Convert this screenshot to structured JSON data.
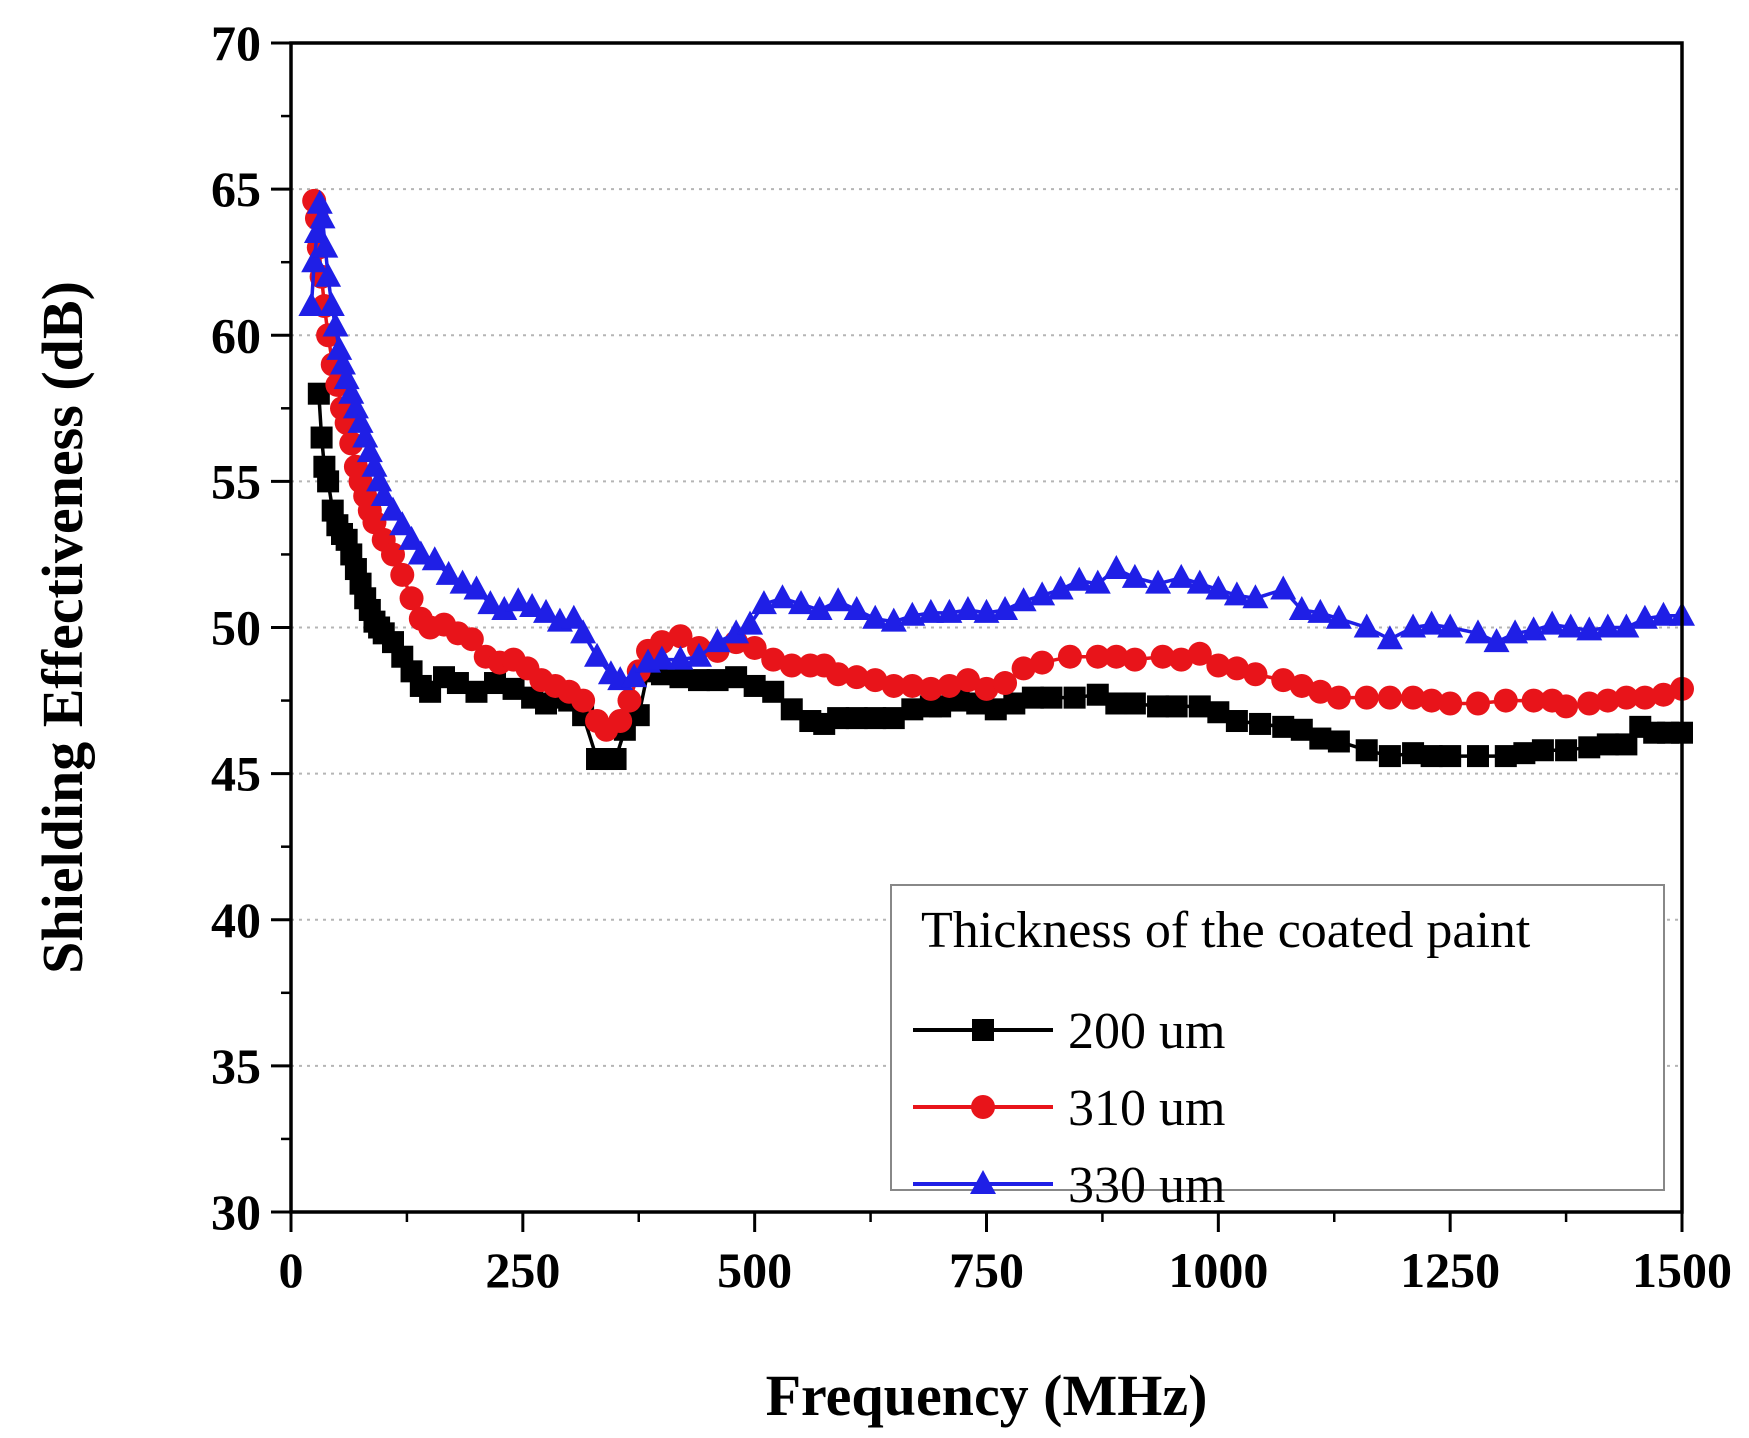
{
  "chart_data": {
    "type": "line",
    "title": "",
    "xlabel": "Frequency (MHz)",
    "ylabel": "Shielding Effectiveness (dB)",
    "xlim": [
      0,
      1500
    ],
    "ylim": [
      30,
      70
    ],
    "xticks": [
      0,
      250,
      500,
      750,
      1000,
      1250,
      1500
    ],
    "yticks": [
      30,
      35,
      40,
      45,
      50,
      55,
      60,
      65,
      70
    ],
    "grid": "horizontal-dotted",
    "legend_title": "Thickness of the coated paint",
    "legend_position": "bottom-right",
    "series": [
      {
        "name": "200 um",
        "color": "#000000",
        "marker": "square",
        "points": [
          [
            30,
            58
          ],
          [
            33,
            56.5
          ],
          [
            36,
            55.5
          ],
          [
            40,
            55
          ],
          [
            45,
            54
          ],
          [
            50,
            53.5
          ],
          [
            55,
            53.2
          ],
          [
            60,
            53
          ],
          [
            65,
            52.5
          ],
          [
            70,
            52
          ],
          [
            75,
            51.5
          ],
          [
            80,
            51
          ],
          [
            85,
            50.6
          ],
          [
            90,
            50.2
          ],
          [
            95,
            50
          ],
          [
            100,
            49.8
          ],
          [
            110,
            49.5
          ],
          [
            120,
            49
          ],
          [
            130,
            48.5
          ],
          [
            140,
            48
          ],
          [
            150,
            47.8
          ],
          [
            165,
            48.3
          ],
          [
            180,
            48.1
          ],
          [
            200,
            47.8
          ],
          [
            220,
            48.1
          ],
          [
            240,
            47.9
          ],
          [
            260,
            47.6
          ],
          [
            275,
            47.4
          ],
          [
            290,
            47.6
          ],
          [
            300,
            47.5
          ],
          [
            315,
            47
          ],
          [
            330,
            45.5
          ],
          [
            340,
            45.5
          ],
          [
            350,
            45.5
          ],
          [
            360,
            46.5
          ],
          [
            375,
            47
          ],
          [
            385,
            48.5
          ],
          [
            400,
            48.4
          ],
          [
            420,
            48.3
          ],
          [
            440,
            48.2
          ],
          [
            460,
            48.2
          ],
          [
            480,
            48.3
          ],
          [
            500,
            48
          ],
          [
            520,
            47.8
          ],
          [
            540,
            47.2
          ],
          [
            560,
            46.8
          ],
          [
            575,
            46.7
          ],
          [
            590,
            46.9
          ],
          [
            610,
            46.9
          ],
          [
            630,
            46.9
          ],
          [
            650,
            46.9
          ],
          [
            670,
            47.2
          ],
          [
            690,
            47.3
          ],
          [
            700,
            47.3
          ],
          [
            720,
            47.5
          ],
          [
            740,
            47.4
          ],
          [
            760,
            47.2
          ],
          [
            780,
            47.4
          ],
          [
            800,
            47.6
          ],
          [
            820,
            47.6
          ],
          [
            845,
            47.6
          ],
          [
            870,
            47.7
          ],
          [
            890,
            47.4
          ],
          [
            910,
            47.4
          ],
          [
            935,
            47.3
          ],
          [
            955,
            47.3
          ],
          [
            980,
            47.3
          ],
          [
            1000,
            47.1
          ],
          [
            1020,
            46.8
          ],
          [
            1045,
            46.7
          ],
          [
            1070,
            46.6
          ],
          [
            1090,
            46.5
          ],
          [
            1110,
            46.2
          ],
          [
            1130,
            46.1
          ],
          [
            1160,
            45.8
          ],
          [
            1185,
            45.6
          ],
          [
            1210,
            45.7
          ],
          [
            1230,
            45.6
          ],
          [
            1250,
            45.6
          ],
          [
            1280,
            45.6
          ],
          [
            1310,
            45.6
          ],
          [
            1330,
            45.7
          ],
          [
            1350,
            45.8
          ],
          [
            1375,
            45.8
          ],
          [
            1400,
            45.9
          ],
          [
            1420,
            46
          ],
          [
            1440,
            46
          ],
          [
            1455,
            46.6
          ],
          [
            1470,
            46.4
          ],
          [
            1485,
            46.4
          ],
          [
            1500,
            46.4
          ]
        ]
      },
      {
        "name": "310 um",
        "color": "#e8141a",
        "marker": "circle",
        "points": [
          [
            25,
            64.6
          ],
          [
            28,
            64
          ],
          [
            30,
            63
          ],
          [
            33,
            62
          ],
          [
            36,
            61
          ],
          [
            40,
            60
          ],
          [
            45,
            59
          ],
          [
            50,
            58.3
          ],
          [
            55,
            57.5
          ],
          [
            60,
            57
          ],
          [
            65,
            56.3
          ],
          [
            70,
            55.5
          ],
          [
            75,
            55
          ],
          [
            80,
            54.5
          ],
          [
            85,
            54
          ],
          [
            90,
            53.6
          ],
          [
            100,
            53
          ],
          [
            110,
            52.5
          ],
          [
            120,
            51.8
          ],
          [
            130,
            51
          ],
          [
            140,
            50.3
          ],
          [
            150,
            50
          ],
          [
            165,
            50.1
          ],
          [
            180,
            49.8
          ],
          [
            195,
            49.6
          ],
          [
            210,
            49
          ],
          [
            225,
            48.8
          ],
          [
            240,
            48.9
          ],
          [
            255,
            48.6
          ],
          [
            270,
            48.2
          ],
          [
            285,
            48
          ],
          [
            300,
            47.8
          ],
          [
            315,
            47.5
          ],
          [
            330,
            46.8
          ],
          [
            340,
            46.5
          ],
          [
            355,
            46.8
          ],
          [
            365,
            47.5
          ],
          [
            375,
            48.5
          ],
          [
            385,
            49.2
          ],
          [
            400,
            49.5
          ],
          [
            420,
            49.7
          ],
          [
            440,
            49.3
          ],
          [
            460,
            49.2
          ],
          [
            480,
            49.5
          ],
          [
            500,
            49.3
          ],
          [
            520,
            48.9
          ],
          [
            540,
            48.7
          ],
          [
            560,
            48.7
          ],
          [
            575,
            48.7
          ],
          [
            590,
            48.4
          ],
          [
            610,
            48.3
          ],
          [
            630,
            48.2
          ],
          [
            650,
            48
          ],
          [
            670,
            48
          ],
          [
            690,
            47.9
          ],
          [
            710,
            48
          ],
          [
            730,
            48.2
          ],
          [
            750,
            47.9
          ],
          [
            770,
            48.1
          ],
          [
            790,
            48.6
          ],
          [
            810,
            48.8
          ],
          [
            840,
            49
          ],
          [
            870,
            49
          ],
          [
            890,
            49
          ],
          [
            910,
            48.9
          ],
          [
            940,
            49
          ],
          [
            960,
            48.9
          ],
          [
            980,
            49.1
          ],
          [
            1000,
            48.7
          ],
          [
            1020,
            48.6
          ],
          [
            1040,
            48.4
          ],
          [
            1070,
            48.2
          ],
          [
            1090,
            48
          ],
          [
            1110,
            47.8
          ],
          [
            1130,
            47.6
          ],
          [
            1160,
            47.6
          ],
          [
            1185,
            47.6
          ],
          [
            1210,
            47.6
          ],
          [
            1230,
            47.5
          ],
          [
            1250,
            47.4
          ],
          [
            1280,
            47.4
          ],
          [
            1310,
            47.5
          ],
          [
            1340,
            47.5
          ],
          [
            1360,
            47.5
          ],
          [
            1375,
            47.3
          ],
          [
            1400,
            47.4
          ],
          [
            1420,
            47.5
          ],
          [
            1440,
            47.6
          ],
          [
            1460,
            47.6
          ],
          [
            1480,
            47.7
          ],
          [
            1500,
            47.9
          ]
        ]
      },
      {
        "name": "330 um",
        "color": "#1f1fe6",
        "marker": "triangle",
        "points": [
          [
            22,
            61
          ],
          [
            25,
            62.5
          ],
          [
            28,
            63.5
          ],
          [
            31,
            64.5
          ],
          [
            34,
            64
          ],
          [
            37,
            63
          ],
          [
            40,
            62
          ],
          [
            44,
            61
          ],
          [
            48,
            60.3
          ],
          [
            52,
            59.5
          ],
          [
            56,
            59
          ],
          [
            60,
            58.5
          ],
          [
            65,
            58
          ],
          [
            70,
            57.5
          ],
          [
            75,
            57
          ],
          [
            80,
            56.5
          ],
          [
            85,
            56
          ],
          [
            90,
            55.5
          ],
          [
            95,
            55
          ],
          [
            100,
            54.5
          ],
          [
            110,
            54
          ],
          [
            120,
            53.5
          ],
          [
            130,
            53
          ],
          [
            140,
            52.5
          ],
          [
            155,
            52.3
          ],
          [
            170,
            51.8
          ],
          [
            185,
            51.5
          ],
          [
            200,
            51.3
          ],
          [
            215,
            50.8
          ],
          [
            230,
            50.6
          ],
          [
            245,
            50.9
          ],
          [
            260,
            50.7
          ],
          [
            275,
            50.5
          ],
          [
            290,
            50.2
          ],
          [
            305,
            50.3
          ],
          [
            315,
            49.8
          ],
          [
            330,
            49
          ],
          [
            345,
            48.4
          ],
          [
            355,
            48.2
          ],
          [
            370,
            48.3
          ],
          [
            385,
            48.8
          ],
          [
            400,
            48.9
          ],
          [
            420,
            48.9
          ],
          [
            440,
            49
          ],
          [
            460,
            49.5
          ],
          [
            480,
            49.8
          ],
          [
            495,
            50.1
          ],
          [
            510,
            50.8
          ],
          [
            530,
            51
          ],
          [
            550,
            50.8
          ],
          [
            570,
            50.6
          ],
          [
            590,
            50.9
          ],
          [
            610,
            50.6
          ],
          [
            630,
            50.3
          ],
          [
            650,
            50.2
          ],
          [
            670,
            50.4
          ],
          [
            690,
            50.5
          ],
          [
            710,
            50.5
          ],
          [
            730,
            50.6
          ],
          [
            750,
            50.5
          ],
          [
            770,
            50.6
          ],
          [
            790,
            50.9
          ],
          [
            810,
            51.1
          ],
          [
            830,
            51.3
          ],
          [
            850,
            51.6
          ],
          [
            870,
            51.5
          ],
          [
            890,
            52
          ],
          [
            910,
            51.7
          ],
          [
            935,
            51.5
          ],
          [
            960,
            51.7
          ],
          [
            980,
            51.5
          ],
          [
            1000,
            51.3
          ],
          [
            1020,
            51.1
          ],
          [
            1040,
            51
          ],
          [
            1070,
            51.3
          ],
          [
            1090,
            50.6
          ],
          [
            1110,
            50.5
          ],
          [
            1130,
            50.3
          ],
          [
            1160,
            50
          ],
          [
            1185,
            49.6
          ],
          [
            1210,
            50
          ],
          [
            1230,
            50.1
          ],
          [
            1250,
            50
          ],
          [
            1280,
            49.8
          ],
          [
            1300,
            49.5
          ],
          [
            1320,
            49.8
          ],
          [
            1340,
            49.9
          ],
          [
            1360,
            50.1
          ],
          [
            1380,
            50
          ],
          [
            1400,
            49.9
          ],
          [
            1420,
            50
          ],
          [
            1440,
            50
          ],
          [
            1460,
            50.3
          ],
          [
            1480,
            50.4
          ],
          [
            1500,
            50.4
          ]
        ]
      }
    ]
  }
}
